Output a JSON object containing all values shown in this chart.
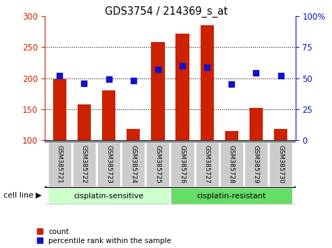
{
  "title": "GDS3754 / 214369_s_at",
  "samples": [
    "GSM385721",
    "GSM385722",
    "GSM385723",
    "GSM385724",
    "GSM385725",
    "GSM385726",
    "GSM385727",
    "GSM385728",
    "GSM385729",
    "GSM385730"
  ],
  "counts": [
    198,
    158,
    180,
    118,
    258,
    272,
    285,
    115,
    152,
    118
  ],
  "percentile_ranks": [
    52,
    46,
    49,
    48,
    57,
    60,
    59,
    45,
    54,
    52
  ],
  "bar_color": "#cc2200",
  "dot_color": "#1111cc",
  "left_ylim": [
    100,
    300
  ],
  "right_ylim": [
    0,
    100
  ],
  "left_yticks": [
    100,
    150,
    200,
    250,
    300
  ],
  "right_yticks": [
    0,
    25,
    50,
    75,
    100
  ],
  "right_yticklabels": [
    "0",
    "25",
    "50",
    "75",
    "100%"
  ],
  "groups": [
    {
      "label": "cisplatin-sensitive",
      "start": 0,
      "end": 5,
      "color": "#ccffcc"
    },
    {
      "label": "cisplatin-resistant",
      "start": 5,
      "end": 10,
      "color": "#66dd66"
    }
  ],
  "group_label": "cell line",
  "legend_count_label": "count",
  "legend_pct_label": "percentile rank within the sample",
  "left_tick_color": "#cc2200",
  "right_tick_color": "#1111cc",
  "grid_color": "black",
  "tick_area_color": "#cccccc",
  "bar_width": 0.55,
  "dot_size": 40,
  "grid_yticks": [
    150,
    200,
    250
  ]
}
